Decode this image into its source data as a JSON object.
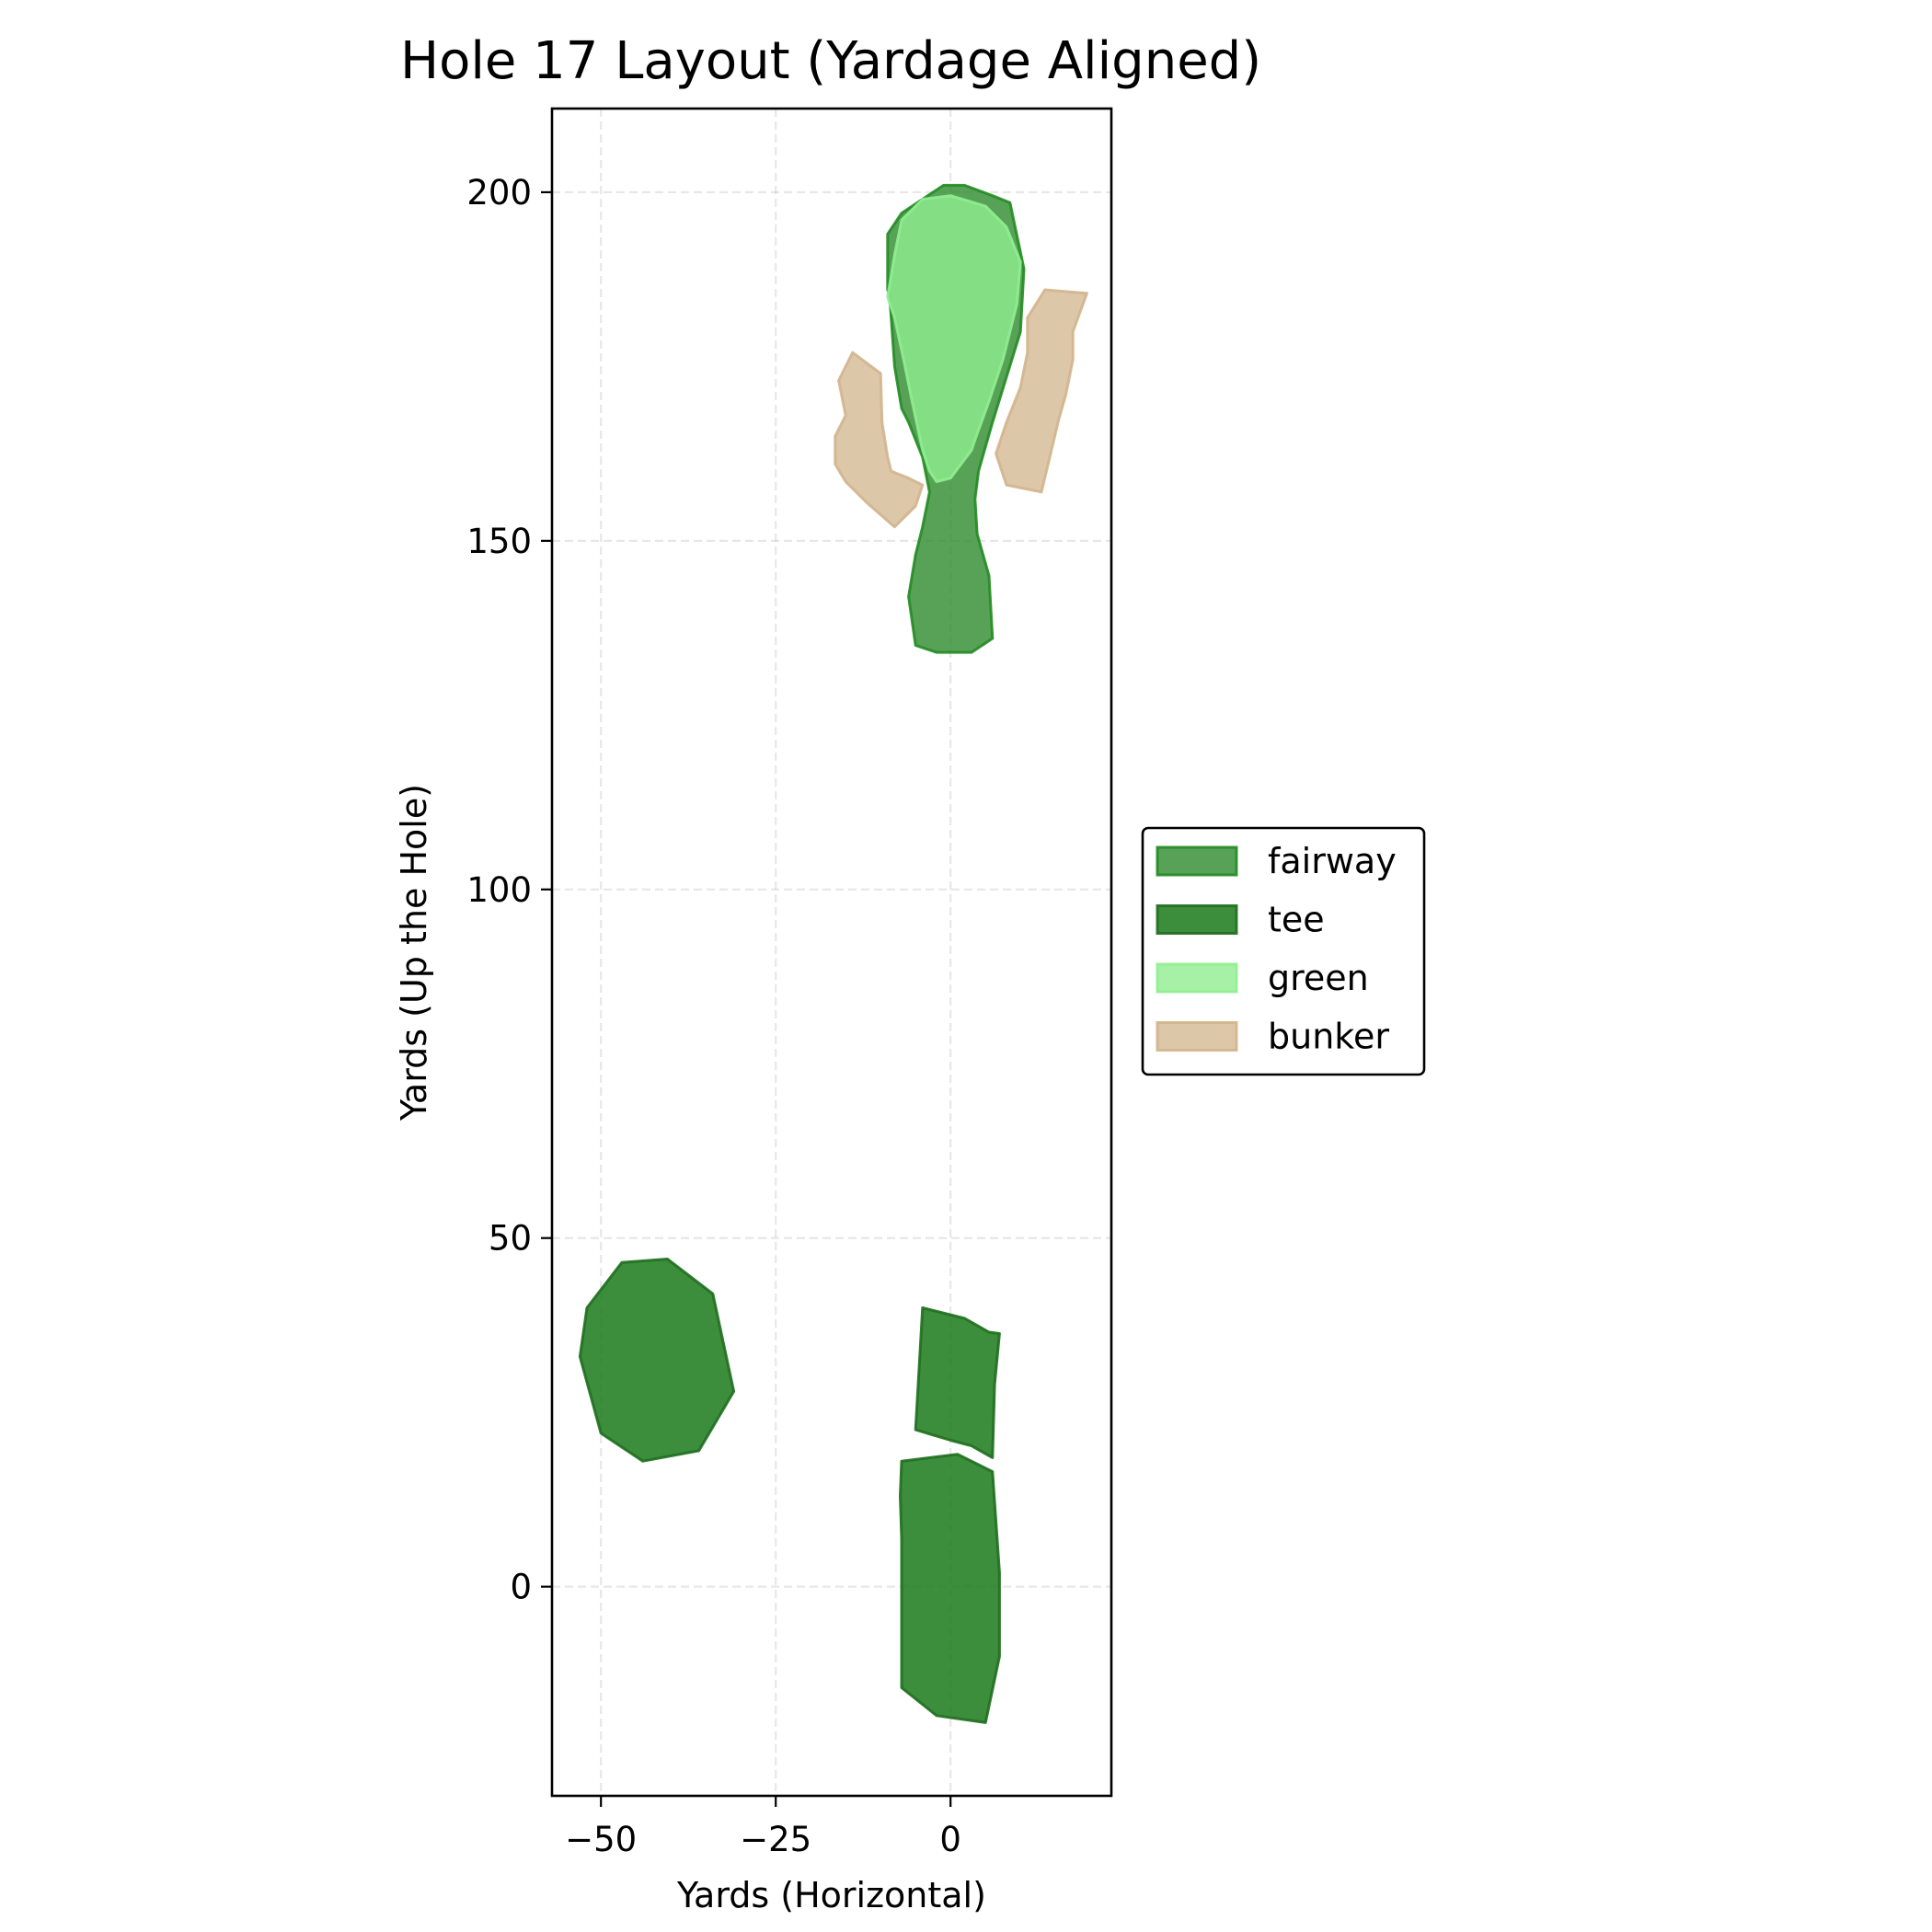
{
  "chart_data": {
    "type": "area",
    "title": "Hole 17 Layout (Yardage Aligned)",
    "xlabel": "Yards (Horizontal)",
    "ylabel": "Yards (Up the Hole)",
    "xlim": [
      -57,
      23
    ],
    "ylim": [
      -30,
      212
    ],
    "xticks": [
      -50,
      -25,
      0
    ],
    "xtick_labels": [
      "−50",
      "−25",
      "0"
    ],
    "yticks": [
      0,
      50,
      100,
      150,
      200
    ],
    "ytick_labels": [
      "0",
      "50",
      "100",
      "150",
      "200"
    ],
    "grid": true,
    "legend_position": "center-right-outside",
    "series": [
      {
        "name": "fairway",
        "face": "#2e8b2e",
        "edge": "#228b22",
        "alpha": 0.8,
        "polygons": [
          [
            [
              -1,
              201
            ],
            [
              2,
              201
            ],
            [
              6,
              199.5
            ],
            [
              8.5,
              198.5
            ],
            [
              10.5,
              189
            ],
            [
              10,
              180
            ],
            [
              6,
              167
            ],
            [
              4,
              160
            ],
            [
              3.5,
              156
            ],
            [
              3.8,
              151
            ],
            [
              5.5,
              145
            ],
            [
              6,
              136
            ],
            [
              3,
              134
            ],
            [
              -2,
              134
            ],
            [
              -5,
              135
            ],
            [
              -6,
              142
            ],
            [
              -5,
              148
            ],
            [
              -4,
              152
            ],
            [
              -3,
              157
            ],
            [
              -4,
              162
            ],
            [
              -6,
              167
            ],
            [
              -7,
              169
            ],
            [
              -8,
              175
            ],
            [
              -8.7,
              185
            ],
            [
              -9,
              186
            ],
            [
              -9,
              194
            ],
            [
              -7,
              197
            ],
            [
              -4,
              199
            ]
          ]
        ]
      },
      {
        "name": "tee",
        "face": "#1a7a1a",
        "edge": "#1e6e1e",
        "alpha": 0.85,
        "polygons": [
          [
            [
              -52,
              40
            ],
            [
              -53,
              33
            ],
            [
              -50,
              22
            ],
            [
              -44,
              18
            ],
            [
              -36,
              19.5
            ],
            [
              -31,
              28
            ],
            [
              -32.5,
              35
            ],
            [
              -34,
              42
            ],
            [
              -40.5,
              47
            ],
            [
              -47,
              46.5
            ]
          ],
          [
            [
              -4,
              40
            ],
            [
              2,
              38.5
            ],
            [
              5.5,
              36.5
            ],
            [
              7,
              36.3
            ],
            [
              6.3,
              29
            ],
            [
              6,
              18.5
            ],
            [
              3,
              20.2
            ],
            [
              0,
              21
            ],
            [
              -5,
              22.5
            ]
          ],
          [
            [
              -7,
              18
            ],
            [
              1,
              19
            ],
            [
              6,
              16.5
            ],
            [
              7,
              2
            ],
            [
              7,
              -10
            ],
            [
              5,
              -19.5
            ],
            [
              -2,
              -18.5
            ],
            [
              -7,
              -14.5
            ],
            [
              -7,
              7
            ],
            [
              -7.2,
              13
            ]
          ]
        ]
      },
      {
        "name": "green",
        "face": "#90ee90",
        "edge": "#90ee90",
        "alpha": 0.8,
        "polygons": [
          [
            [
              -4,
              199
            ],
            [
              0,
              199.5
            ],
            [
              5,
              198
            ],
            [
              8,
              195
            ],
            [
              10,
              190
            ],
            [
              9.5,
              184
            ],
            [
              7.5,
              176
            ],
            [
              5.5,
              170
            ],
            [
              3.5,
              164.5
            ],
            [
              3,
              163
            ],
            [
              0,
              159
            ],
            [
              -2,
              158.5
            ],
            [
              -3,
              160
            ],
            [
              -4,
              163
            ],
            [
              -5.5,
              170
            ],
            [
              -6.5,
              175
            ],
            [
              -8,
              182
            ],
            [
              -9,
              185
            ],
            [
              -8,
              191
            ],
            [
              -7,
              196
            ]
          ]
        ]
      },
      {
        "name": "bunker",
        "face": "#d2b48c",
        "edge": "#d2b48c",
        "alpha": 0.75,
        "polygons": [
          [
            [
              -16,
              173
            ],
            [
              -14,
              177
            ],
            [
              -10,
              174
            ],
            [
              -9.8,
              167
            ],
            [
              -9,
              162
            ],
            [
              -8.5,
              160
            ],
            [
              -6,
              159
            ],
            [
              -4,
              158
            ],
            [
              -5,
              155
            ],
            [
              -8,
              152
            ],
            [
              -12,
              155.5
            ],
            [
              -15,
              158.5
            ],
            [
              -16.5,
              161
            ],
            [
              -16.5,
              165
            ],
            [
              -15,
              168
            ]
          ],
          [
            [
              11,
              182
            ],
            [
              13.5,
              186
            ],
            [
              19.5,
              185.5
            ],
            [
              17.5,
              180
            ],
            [
              17.5,
              176
            ],
            [
              16.5,
              171
            ],
            [
              15.5,
              167.5
            ],
            [
              13,
              157
            ],
            [
              8,
              158
            ],
            [
              6.5,
              162.5
            ],
            [
              8,
              167
            ],
            [
              10,
              172
            ],
            [
              11,
              177
            ]
          ]
        ]
      }
    ]
  }
}
